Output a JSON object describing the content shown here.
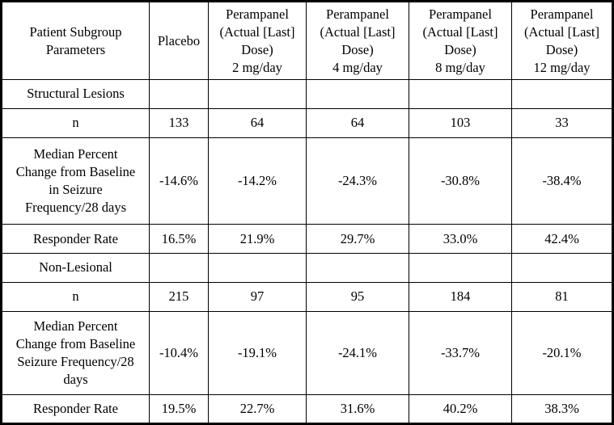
{
  "table": {
    "header": {
      "param_label": "Patient Subgroup\nParameters",
      "cols": [
        "Placebo",
        "Perampanel\n(Actual [Last]\nDose)\n2 mg/day",
        "Perampanel\n(Actual [Last]\nDose)\n4 mg/day",
        "Perampanel\n(Actual [Last]\nDose)\n8 mg/day",
        "Perampanel\n(Actual [Last]\nDose)\n12 mg/day"
      ]
    },
    "rows": [
      {
        "label": "Structural Lesions",
        "values": [
          "",
          "",
          "",
          "",
          ""
        ]
      },
      {
        "label": "n",
        "values": [
          "133",
          "64",
          "64",
          "103",
          "33"
        ]
      },
      {
        "label": "Median Percent\nChange from Baseline\nin Seizure\nFrequency/28 days",
        "values": [
          "-14.6%",
          "-14.2%",
          "-24.3%",
          "-30.8%",
          "-38.4%"
        ]
      },
      {
        "label": "Responder Rate",
        "values": [
          "16.5%",
          "21.9%",
          "29.7%",
          "33.0%",
          "42.4%"
        ]
      },
      {
        "label": "Non-Lesional",
        "values": [
          "",
          "",
          "",
          "",
          ""
        ]
      },
      {
        "label": "n",
        "values": [
          "215",
          "97",
          "95",
          "184",
          "81"
        ]
      },
      {
        "label": "Median Percent\nChange from Baseline\nSeizure Frequency/28\ndays",
        "values": [
          "-10.4%",
          "-19.1%",
          "-24.1%",
          "-33.7%",
          "-20.1%"
        ]
      },
      {
        "label": "Responder Rate",
        "values": [
          "19.5%",
          "22.7%",
          "31.6%",
          "40.2%",
          "38.3%"
        ]
      }
    ]
  },
  "chart_data": {
    "type": "table",
    "title": "Patient Subgroup Parameters",
    "categories": [
      "Placebo",
      "Perampanel 2 mg/day",
      "Perampanel 4 mg/day",
      "Perampanel 8 mg/day",
      "Perampanel 12 mg/day"
    ],
    "series": [
      {
        "name": "Structural Lesions n",
        "values": [
          133,
          64,
          64,
          103,
          33
        ]
      },
      {
        "name": "Structural Lesions Median Percent Change from Baseline in Seizure Frequency/28 days",
        "values": [
          -14.6,
          -14.2,
          -24.3,
          -30.8,
          -38.4
        ]
      },
      {
        "name": "Structural Lesions Responder Rate",
        "values": [
          16.5,
          21.9,
          29.7,
          33.0,
          42.4
        ]
      },
      {
        "name": "Non-Lesional n",
        "values": [
          215,
          97,
          95,
          184,
          81
        ]
      },
      {
        "name": "Non-Lesional Median Percent Change from Baseline Seizure Frequency/28 days",
        "values": [
          -10.4,
          -19.1,
          -24.1,
          -33.7,
          -20.1
        ]
      },
      {
        "name": "Non-Lesional Responder Rate",
        "values": [
          19.5,
          22.7,
          31.6,
          40.2,
          38.3
        ]
      }
    ]
  }
}
